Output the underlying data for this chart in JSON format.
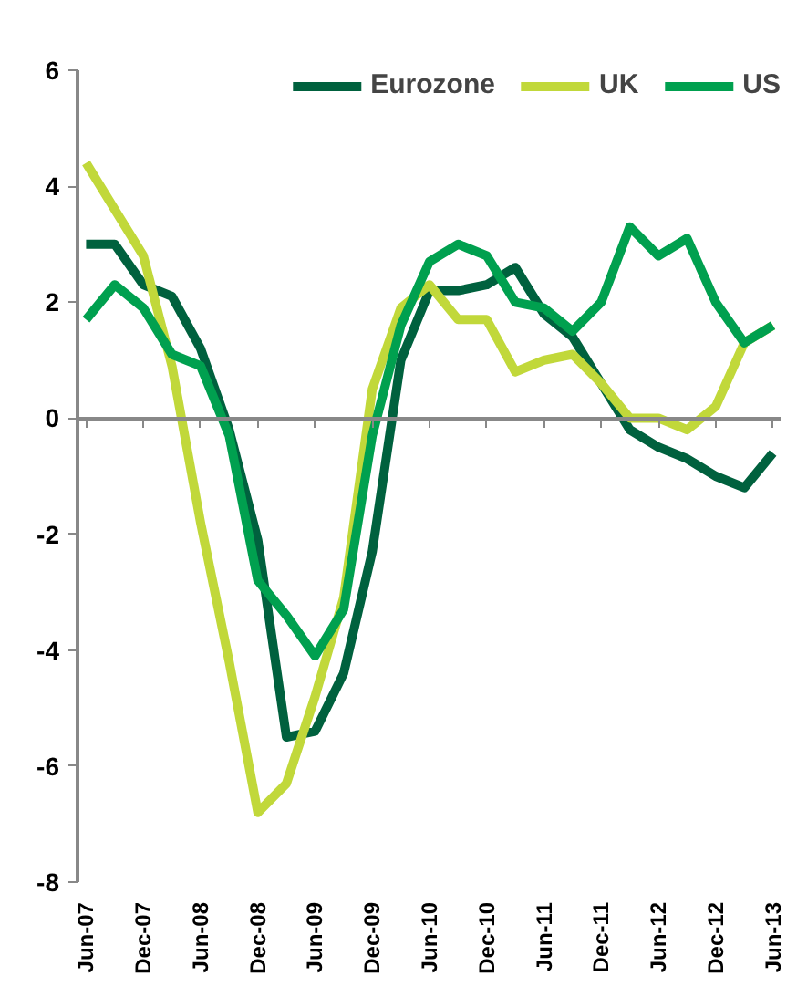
{
  "chart_data": {
    "type": "line",
    "categories": [
      "Jun-07",
      null,
      "Dec-07",
      null,
      "Jun-08",
      null,
      "Dec-08",
      null,
      "Jun-09",
      null,
      "Dec-09",
      null,
      "Jun-10",
      null,
      "Dec-10",
      null,
      "Jun-11",
      null,
      "Dec-11",
      null,
      "Jun-12",
      null,
      "Dec-12",
      null,
      "Jun-13"
    ],
    "series": [
      {
        "name": "Eurozone",
        "color": "#00613e",
        "values": [
          3.0,
          3.0,
          2.3,
          2.1,
          1.2,
          -0.2,
          -2.1,
          -5.5,
          -5.4,
          -4.4,
          -2.3,
          1.0,
          2.2,
          2.2,
          2.3,
          2.6,
          1.8,
          1.4,
          0.6,
          -0.2,
          -0.5,
          -0.7,
          -1.0,
          -1.2,
          -0.6
        ]
      },
      {
        "name": "UK",
        "color": "#c1d83a",
        "values": [
          4.4,
          3.6,
          2.8,
          0.9,
          -1.8,
          -4.2,
          -6.8,
          -6.3,
          -4.8,
          -3.1,
          0.5,
          1.9,
          2.3,
          1.7,
          1.7,
          0.8,
          1.0,
          1.1,
          0.6,
          0.0,
          0.0,
          -0.2,
          0.2,
          1.3,
          1.6
        ]
      },
      {
        "name": "US",
        "color": "#00a04f",
        "values": [
          1.7,
          2.3,
          1.9,
          1.1,
          0.9,
          -0.3,
          -2.8,
          -3.4,
          -4.1,
          -3.3,
          -0.3,
          1.6,
          2.7,
          3.0,
          2.8,
          2.0,
          1.9,
          1.5,
          2.0,
          3.3,
          2.8,
          3.1,
          2.0,
          1.3,
          1.6
        ]
      }
    ],
    "ylim": [
      -8,
      6
    ],
    "yticks": [
      -8,
      -6,
      -4,
      -2,
      0,
      2,
      4,
      6
    ],
    "legend": "top",
    "marker": "none",
    "line_style": "solid"
  }
}
